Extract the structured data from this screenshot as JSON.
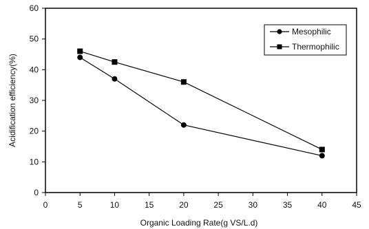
{
  "chart_data": {
    "type": "line",
    "xlabel": "Organic Loading Rate(g VS/L.d)",
    "ylabel": "Acidification efficiency(%)",
    "xlim": [
      0,
      45
    ],
    "ylim": [
      0,
      60
    ],
    "xticks": [
      0,
      5,
      10,
      15,
      20,
      25,
      30,
      35,
      40,
      45
    ],
    "yticks": [
      0,
      10,
      20,
      30,
      40,
      50,
      60
    ],
    "grid": false,
    "legend_position": "top-right",
    "series": [
      {
        "name": "Mesophilic",
        "marker": "circle",
        "color": "#000000",
        "x": [
          5,
          10,
          20,
          40
        ],
        "values": [
          44,
          37,
          22,
          12
        ]
      },
      {
        "name": "Thermophilic",
        "marker": "square",
        "color": "#000000",
        "x": [
          5,
          10,
          20,
          40
        ],
        "values": [
          46,
          42.5,
          36,
          14
        ]
      }
    ]
  }
}
